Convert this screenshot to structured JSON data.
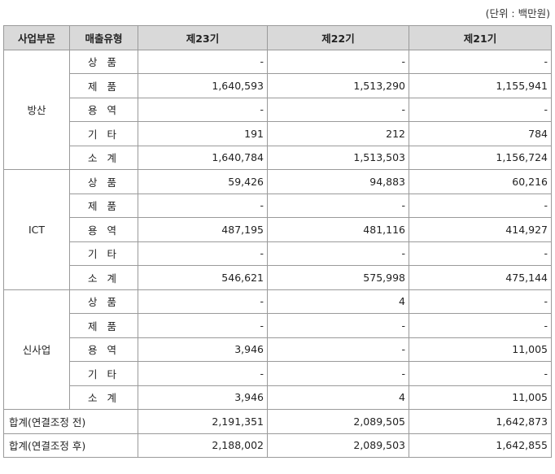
{
  "unit_label": "(단위 : 백만원)",
  "headers": [
    "사업부문",
    "매출유형",
    "제23기",
    "제22기",
    "제21기"
  ],
  "segments": [
    {
      "name": "방산",
      "rows": [
        {
          "type": "상 품",
          "values": [
            "-",
            "-",
            "-"
          ]
        },
        {
          "type": "제 품",
          "values": [
            "1,640,593",
            "1,513,290",
            "1,155,941"
          ]
        },
        {
          "type": "용 역",
          "values": [
            "-",
            "-",
            "-"
          ]
        },
        {
          "type": "기 타",
          "values": [
            "191",
            "212",
            "784"
          ]
        },
        {
          "type": "소 계",
          "values": [
            "1,640,784",
            "1,513,503",
            "1,156,724"
          ]
        }
      ]
    },
    {
      "name": "ICT",
      "rows": [
        {
          "type": "상 품",
          "values": [
            "59,426",
            "94,883",
            "60,216"
          ]
        },
        {
          "type": "제 품",
          "values": [
            "-",
            "-",
            "-"
          ]
        },
        {
          "type": "용 역",
          "values": [
            "487,195",
            "481,116",
            "414,927"
          ]
        },
        {
          "type": "기 타",
          "values": [
            "-",
            "-",
            "-"
          ]
        },
        {
          "type": "소 계",
          "values": [
            "546,621",
            "575,998",
            "475,144"
          ]
        }
      ]
    },
    {
      "name": "신사업",
      "rows": [
        {
          "type": "상 품",
          "values": [
            "-",
            "4",
            "-"
          ]
        },
        {
          "type": "제 품",
          "values": [
            "-",
            "-",
            "-"
          ]
        },
        {
          "type": "용 역",
          "values": [
            "3,946",
            "-",
            "11,005"
          ]
        },
        {
          "type": "기 타",
          "values": [
            "-",
            "-",
            "-"
          ]
        },
        {
          "type": "소 계",
          "values": [
            "3,946",
            "4",
            "11,005"
          ]
        }
      ]
    }
  ],
  "totals": [
    {
      "label": "합계(연결조정 전)",
      "values": [
        "2,191,351",
        "2,089,505",
        "1,642,873"
      ]
    },
    {
      "label": "합계(연결조정 후)",
      "values": [
        "2,188,002",
        "2,089,503",
        "1,642,855"
      ]
    }
  ]
}
